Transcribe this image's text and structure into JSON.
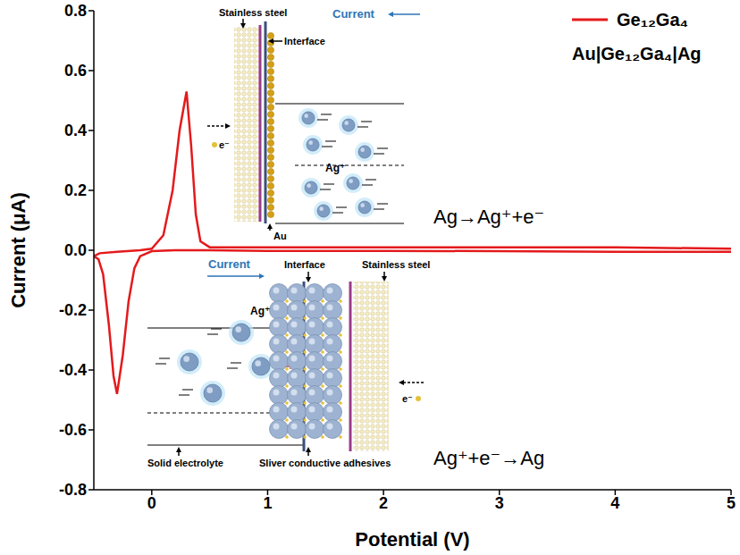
{
  "chart_data": {
    "type": "line",
    "x_label": "Potential (V)",
    "y_label": "Current (μA)",
    "x": [
      5,
      4,
      3,
      2,
      1,
      0.5,
      0.2,
      0,
      -0.1,
      -0.15,
      -0.2,
      -0.25,
      -0.3,
      -0.33,
      -0.37,
      -0.42,
      -0.46,
      -0.5,
      -0.45,
      -0.3,
      -0.1,
      0,
      0.1,
      0.18,
      0.24,
      0.3,
      0.34,
      0.38,
      0.42,
      0.5,
      1,
      2,
      3,
      4,
      5
    ],
    "series": [
      {
        "name": "Ge₁₂Ga₄",
        "color": "#e41a1c",
        "values": [
          -0.005,
          -0.005,
          -0.003,
          -0.002,
          -0.002,
          0,
          0,
          -0.003,
          -0.02,
          -0.06,
          -0.17,
          -0.35,
          -0.48,
          -0.42,
          -0.25,
          -0.08,
          -0.03,
          -0.02,
          -0.01,
          -0.005,
          0,
          0.005,
          0.05,
          0.2,
          0.4,
          0.53,
          0.35,
          0.12,
          0.03,
          0.01,
          0.01,
          0.01,
          0.01,
          0.01,
          0.005
        ]
      }
    ],
    "xlim": [
      -0.5,
      5
    ],
    "xticks": [
      0,
      1,
      2,
      3,
      4,
      5
    ],
    "ylim": [
      -0.8,
      0.8
    ],
    "yticks": [
      -0.8,
      -0.6,
      -0.4,
      -0.2,
      {
        "value": 0,
        "label": "0.0"
      },
      0.2,
      0.4,
      0.6,
      0.8
    ],
    "grid": false,
    "legend": "upper right",
    "annotations": [
      "Au|Ge₁₂Ga₄|Ag",
      "Ag→Ag⁺+e⁻",
      "Ag⁺+e⁻→Ag"
    ],
    "insets": [
      {
        "stainless_steel": "Stainless steel",
        "current": "Current",
        "interface": "Interface",
        "ion": "Ag⁺",
        "electrode": "Au",
        "electron": "e⁻"
      },
      {
        "current": "Current",
        "interface": "Interface",
        "stainless_steel": "Stainless steel",
        "ion": "Ag⁺",
        "electrolyte": "Solid electrolyte",
        "electrode": "Sliver conductive adhesives",
        "electron": "e⁻"
      }
    ]
  }
}
